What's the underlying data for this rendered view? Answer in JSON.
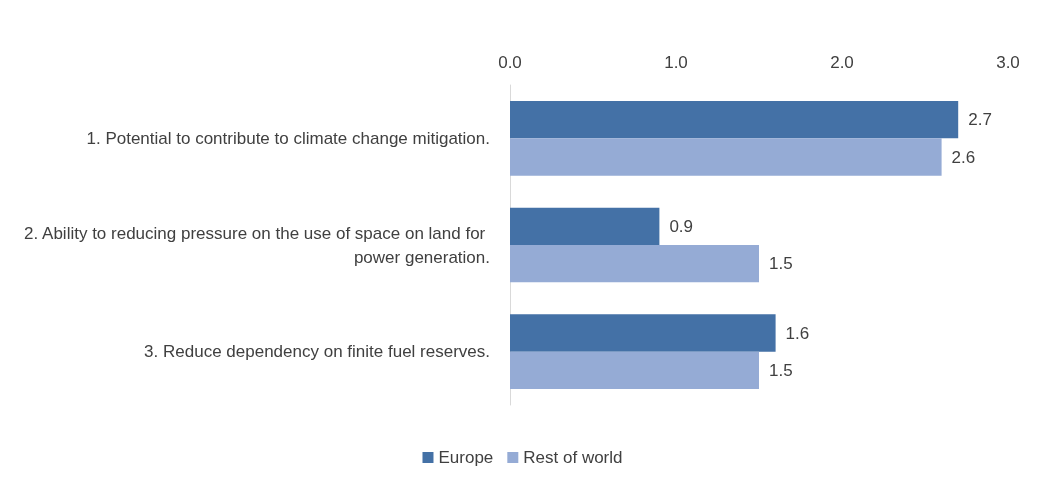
{
  "chart_data": {
    "type": "bar",
    "orientation": "horizontal",
    "categories": [
      "1. Potential to contribute to climate change mitigation.",
      "2. Ability to reducing pressure on the use of space on land for power generation.",
      "3. Reduce dependency on finite fuel reserves."
    ],
    "series": [
      {
        "name": "Europe",
        "color": "#4471a6",
        "values": [
          2.7,
          0.9,
          1.6
        ]
      },
      {
        "name": "Rest of world",
        "color": "#95abd5",
        "values": [
          2.6,
          1.5,
          1.5
        ]
      }
    ],
    "xlim": [
      0,
      3
    ],
    "xticks": [
      {
        "value": 0,
        "label": "0.0"
      },
      {
        "value": 1,
        "label": "1.0"
      },
      {
        "value": 2,
        "label": "2.0"
      },
      {
        "value": 3,
        "label": "3.0"
      }
    ],
    "data_labels": true,
    "grid": false,
    "legend": "bottom"
  }
}
